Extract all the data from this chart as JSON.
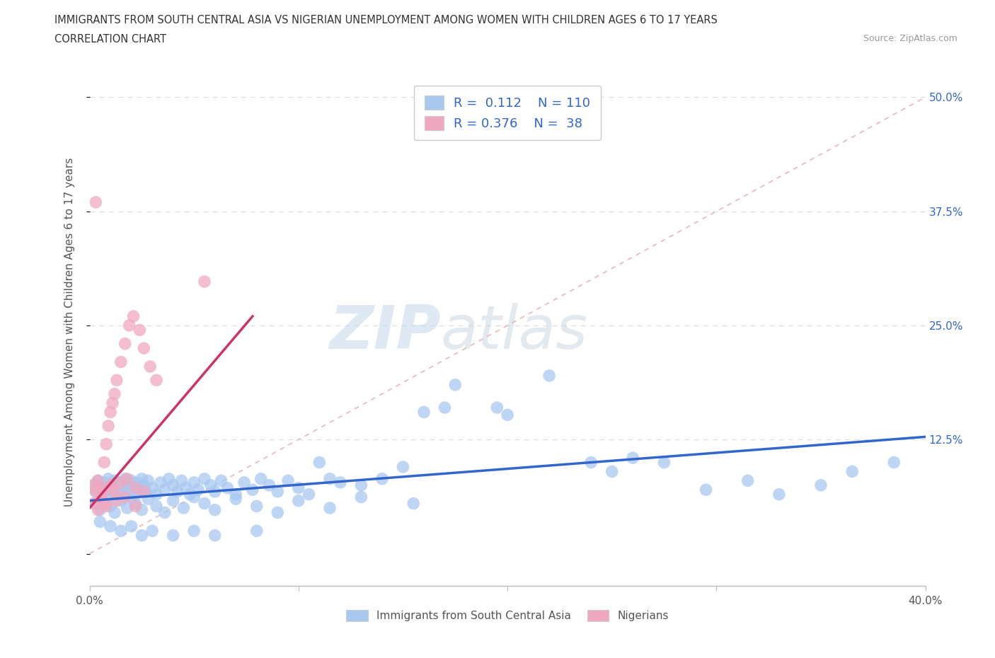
{
  "title_line1": "IMMIGRANTS FROM SOUTH CENTRAL ASIA VS NIGERIAN UNEMPLOYMENT AMONG WOMEN WITH CHILDREN AGES 6 TO 17 YEARS",
  "title_line2": "CORRELATION CHART",
  "source_text": "Source: ZipAtlas.com",
  "ylabel": "Unemployment Among Women with Children Ages 6 to 17 years",
  "xlim": [
    0.0,
    0.4
  ],
  "ylim": [
    -0.035,
    0.52
  ],
  "blue_R": "0.112",
  "blue_N": "110",
  "pink_R": "0.376",
  "pink_N": "38",
  "blue_color": "#a8c8f0",
  "pink_color": "#f0a8c0",
  "blue_line_color": "#3366cc",
  "pink_line_color": "#cc3366",
  "diagonal_color": "#e8b8b8",
  "watermark_zip": "ZIP",
  "watermark_atlas": "atlas",
  "legend_label_blue": "Immigrants from South Central Asia",
  "legend_label_pink": "Nigerians",
  "blue_scatter_x": [
    0.002,
    0.003,
    0.004,
    0.005,
    0.006,
    0.007,
    0.008,
    0.009,
    0.01,
    0.011,
    0.012,
    0.013,
    0.014,
    0.015,
    0.016,
    0.017,
    0.018,
    0.019,
    0.02,
    0.021,
    0.022,
    0.023,
    0.024,
    0.025,
    0.026,
    0.027,
    0.028,
    0.03,
    0.032,
    0.034,
    0.036,
    0.038,
    0.04,
    0.042,
    0.044,
    0.046,
    0.048,
    0.05,
    0.052,
    0.055,
    0.058,
    0.06,
    0.063,
    0.066,
    0.07,
    0.074,
    0.078,
    0.082,
    0.086,
    0.09,
    0.095,
    0.1,
    0.105,
    0.11,
    0.115,
    0.12,
    0.13,
    0.14,
    0.15,
    0.16,
    0.003,
    0.005,
    0.008,
    0.01,
    0.012,
    0.015,
    0.018,
    0.02,
    0.022,
    0.025,
    0.028,
    0.032,
    0.036,
    0.04,
    0.045,
    0.05,
    0.055,
    0.06,
    0.07,
    0.08,
    0.09,
    0.1,
    0.115,
    0.13,
    0.155,
    0.175,
    0.2,
    0.22,
    0.25,
    0.275,
    0.295,
    0.315,
    0.33,
    0.35,
    0.365,
    0.385,
    0.17,
    0.195,
    0.24,
    0.26,
    0.005,
    0.01,
    0.015,
    0.02,
    0.025,
    0.03,
    0.04,
    0.05,
    0.06,
    0.08
  ],
  "blue_scatter_y": [
    0.075,
    0.068,
    0.08,
    0.072,
    0.065,
    0.078,
    0.07,
    0.082,
    0.075,
    0.068,
    0.08,
    0.072,
    0.065,
    0.078,
    0.07,
    0.082,
    0.075,
    0.068,
    0.08,
    0.072,
    0.065,
    0.078,
    0.07,
    0.082,
    0.075,
    0.068,
    0.08,
    0.072,
    0.065,
    0.078,
    0.07,
    0.082,
    0.075,
    0.068,
    0.08,
    0.072,
    0.065,
    0.078,
    0.07,
    0.082,
    0.075,
    0.068,
    0.08,
    0.072,
    0.065,
    0.078,
    0.07,
    0.082,
    0.075,
    0.068,
    0.08,
    0.072,
    0.065,
    0.1,
    0.082,
    0.078,
    0.075,
    0.082,
    0.095,
    0.155,
    0.055,
    0.048,
    0.06,
    0.052,
    0.045,
    0.058,
    0.05,
    0.062,
    0.055,
    0.048,
    0.06,
    0.052,
    0.045,
    0.058,
    0.05,
    0.062,
    0.055,
    0.048,
    0.06,
    0.052,
    0.045,
    0.058,
    0.05,
    0.062,
    0.055,
    0.185,
    0.152,
    0.195,
    0.09,
    0.1,
    0.07,
    0.08,
    0.065,
    0.075,
    0.09,
    0.1,
    0.16,
    0.16,
    0.1,
    0.105,
    0.035,
    0.03,
    0.025,
    0.03,
    0.02,
    0.025,
    0.02,
    0.025,
    0.02,
    0.025
  ],
  "pink_scatter_x": [
    0.002,
    0.003,
    0.004,
    0.005,
    0.006,
    0.007,
    0.008,
    0.009,
    0.01,
    0.011,
    0.012,
    0.013,
    0.015,
    0.017,
    0.019,
    0.021,
    0.024,
    0.026,
    0.029,
    0.032,
    0.002,
    0.004,
    0.006,
    0.008,
    0.01,
    0.012,
    0.015,
    0.018,
    0.022,
    0.026,
    0.003,
    0.005,
    0.007,
    0.01,
    0.013,
    0.017,
    0.022,
    0.055
  ],
  "pink_scatter_y": [
    0.075,
    0.068,
    0.08,
    0.072,
    0.065,
    0.1,
    0.12,
    0.14,
    0.155,
    0.165,
    0.175,
    0.19,
    0.21,
    0.23,
    0.25,
    0.26,
    0.245,
    0.225,
    0.205,
    0.19,
    0.055,
    0.048,
    0.06,
    0.052,
    0.072,
    0.068,
    0.078,
    0.082,
    0.072,
    0.068,
    0.385,
    0.068,
    0.055,
    0.075,
    0.058,
    0.062,
    0.052,
    0.298
  ],
  "blue_line_x0": 0.0,
  "blue_line_y0": 0.058,
  "blue_line_x1": 0.4,
  "blue_line_y1": 0.128,
  "pink_line_x0": 0.0,
  "pink_line_y0": 0.05,
  "pink_line_x1": 0.078,
  "pink_line_y1": 0.26
}
